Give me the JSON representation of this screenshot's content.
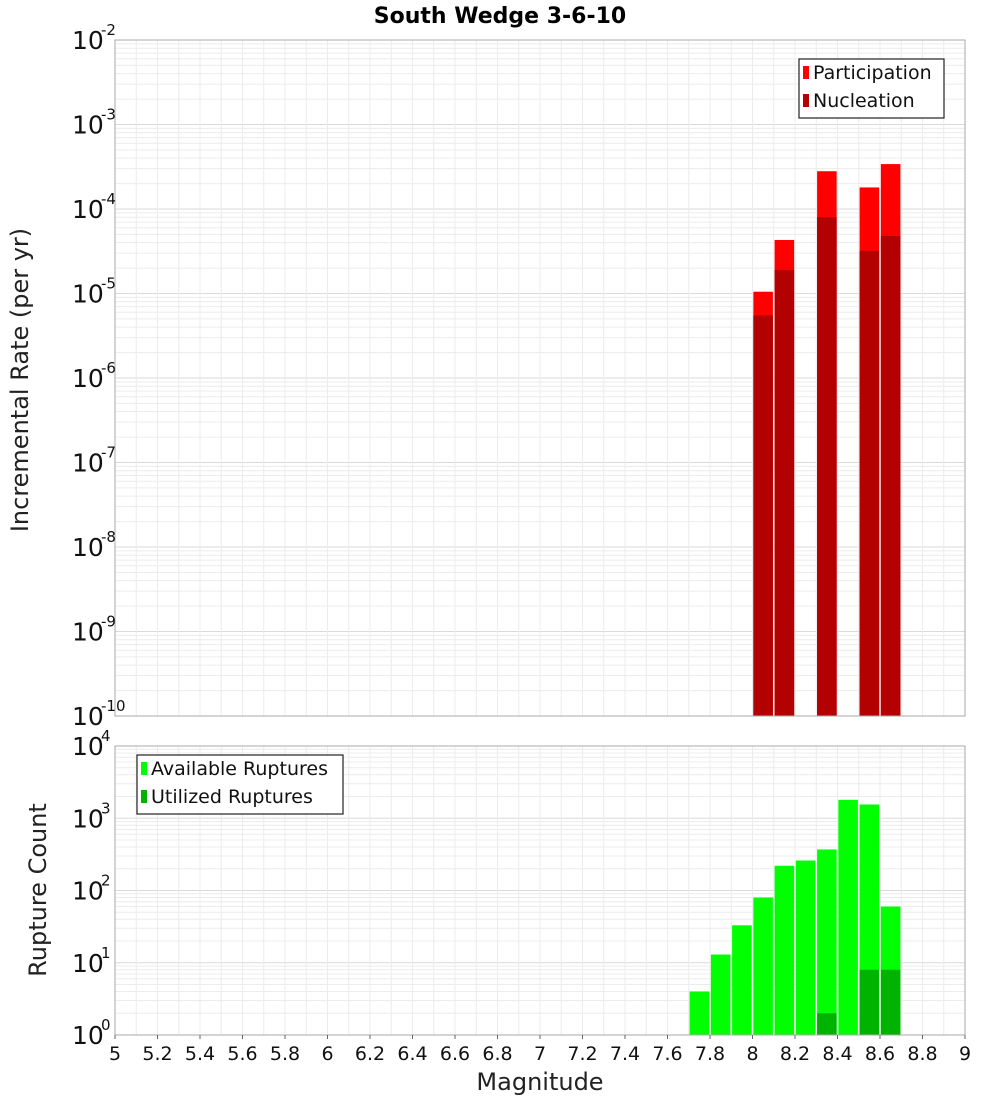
{
  "chart_data": [
    {
      "type": "bar",
      "title": "South Wedge 3-6-10",
      "xlabel": "",
      "ylabel": "Incremental Rate (per yr)",
      "yscale": "log",
      "xlim": [
        5,
        9
      ],
      "ylim": [
        1e-10,
        0.01
      ],
      "y_tick_exponents": [
        -2,
        -3,
        -4,
        -5,
        -6,
        -7,
        -8,
        -9,
        -10
      ],
      "legend_position": "top-right",
      "grid": true,
      "series": [
        {
          "name": "Participation",
          "color": "#ff0000",
          "x": [
            8.05,
            8.15,
            8.35,
            8.55,
            8.65
          ],
          "values": [
            1.05e-05,
            4.3e-05,
            0.00028,
            0.00018,
            0.00034
          ]
        },
        {
          "name": "Nucleation",
          "color": "#b30000",
          "x": [
            8.05,
            8.15,
            8.35,
            8.55,
            8.65
          ],
          "values": [
            5.5e-06,
            1.9e-05,
            8e-05,
            3.2e-05,
            4.8e-05
          ]
        }
      ]
    },
    {
      "type": "bar",
      "title": "",
      "xlabel": "Magnitude",
      "ylabel": "Rupture Count",
      "yscale": "log",
      "xlim": [
        5,
        9
      ],
      "ylim": [
        1,
        10000
      ],
      "y_tick_exponents": [
        4,
        3,
        2,
        1,
        0
      ],
      "x_ticks": [
        "5",
        "5.2",
        "5.4",
        "5.6",
        "5.8",
        "6",
        "6.2",
        "6.4",
        "6.6",
        "6.8",
        "7",
        "7.2",
        "7.4",
        "7.6",
        "7.8",
        "8",
        "8.2",
        "8.4",
        "8.6",
        "8.8",
        "9"
      ],
      "legend_position": "top-left",
      "grid": true,
      "series": [
        {
          "name": "Available Ruptures",
          "color": "#00ff00",
          "x": [
            7.75,
            7.85,
            7.95,
            8.05,
            8.15,
            8.25,
            8.35,
            8.45,
            8.55,
            8.65
          ],
          "values": [
            4,
            13,
            33,
            80,
            220,
            260,
            370,
            1800,
            1550,
            60
          ]
        },
        {
          "name": "Utilized Ruptures",
          "color": "#00b300",
          "x": [
            8.05,
            8.15,
            8.35,
            8.55,
            8.65
          ],
          "values": [
            1,
            1,
            2,
            8,
            8
          ]
        }
      ]
    }
  ]
}
